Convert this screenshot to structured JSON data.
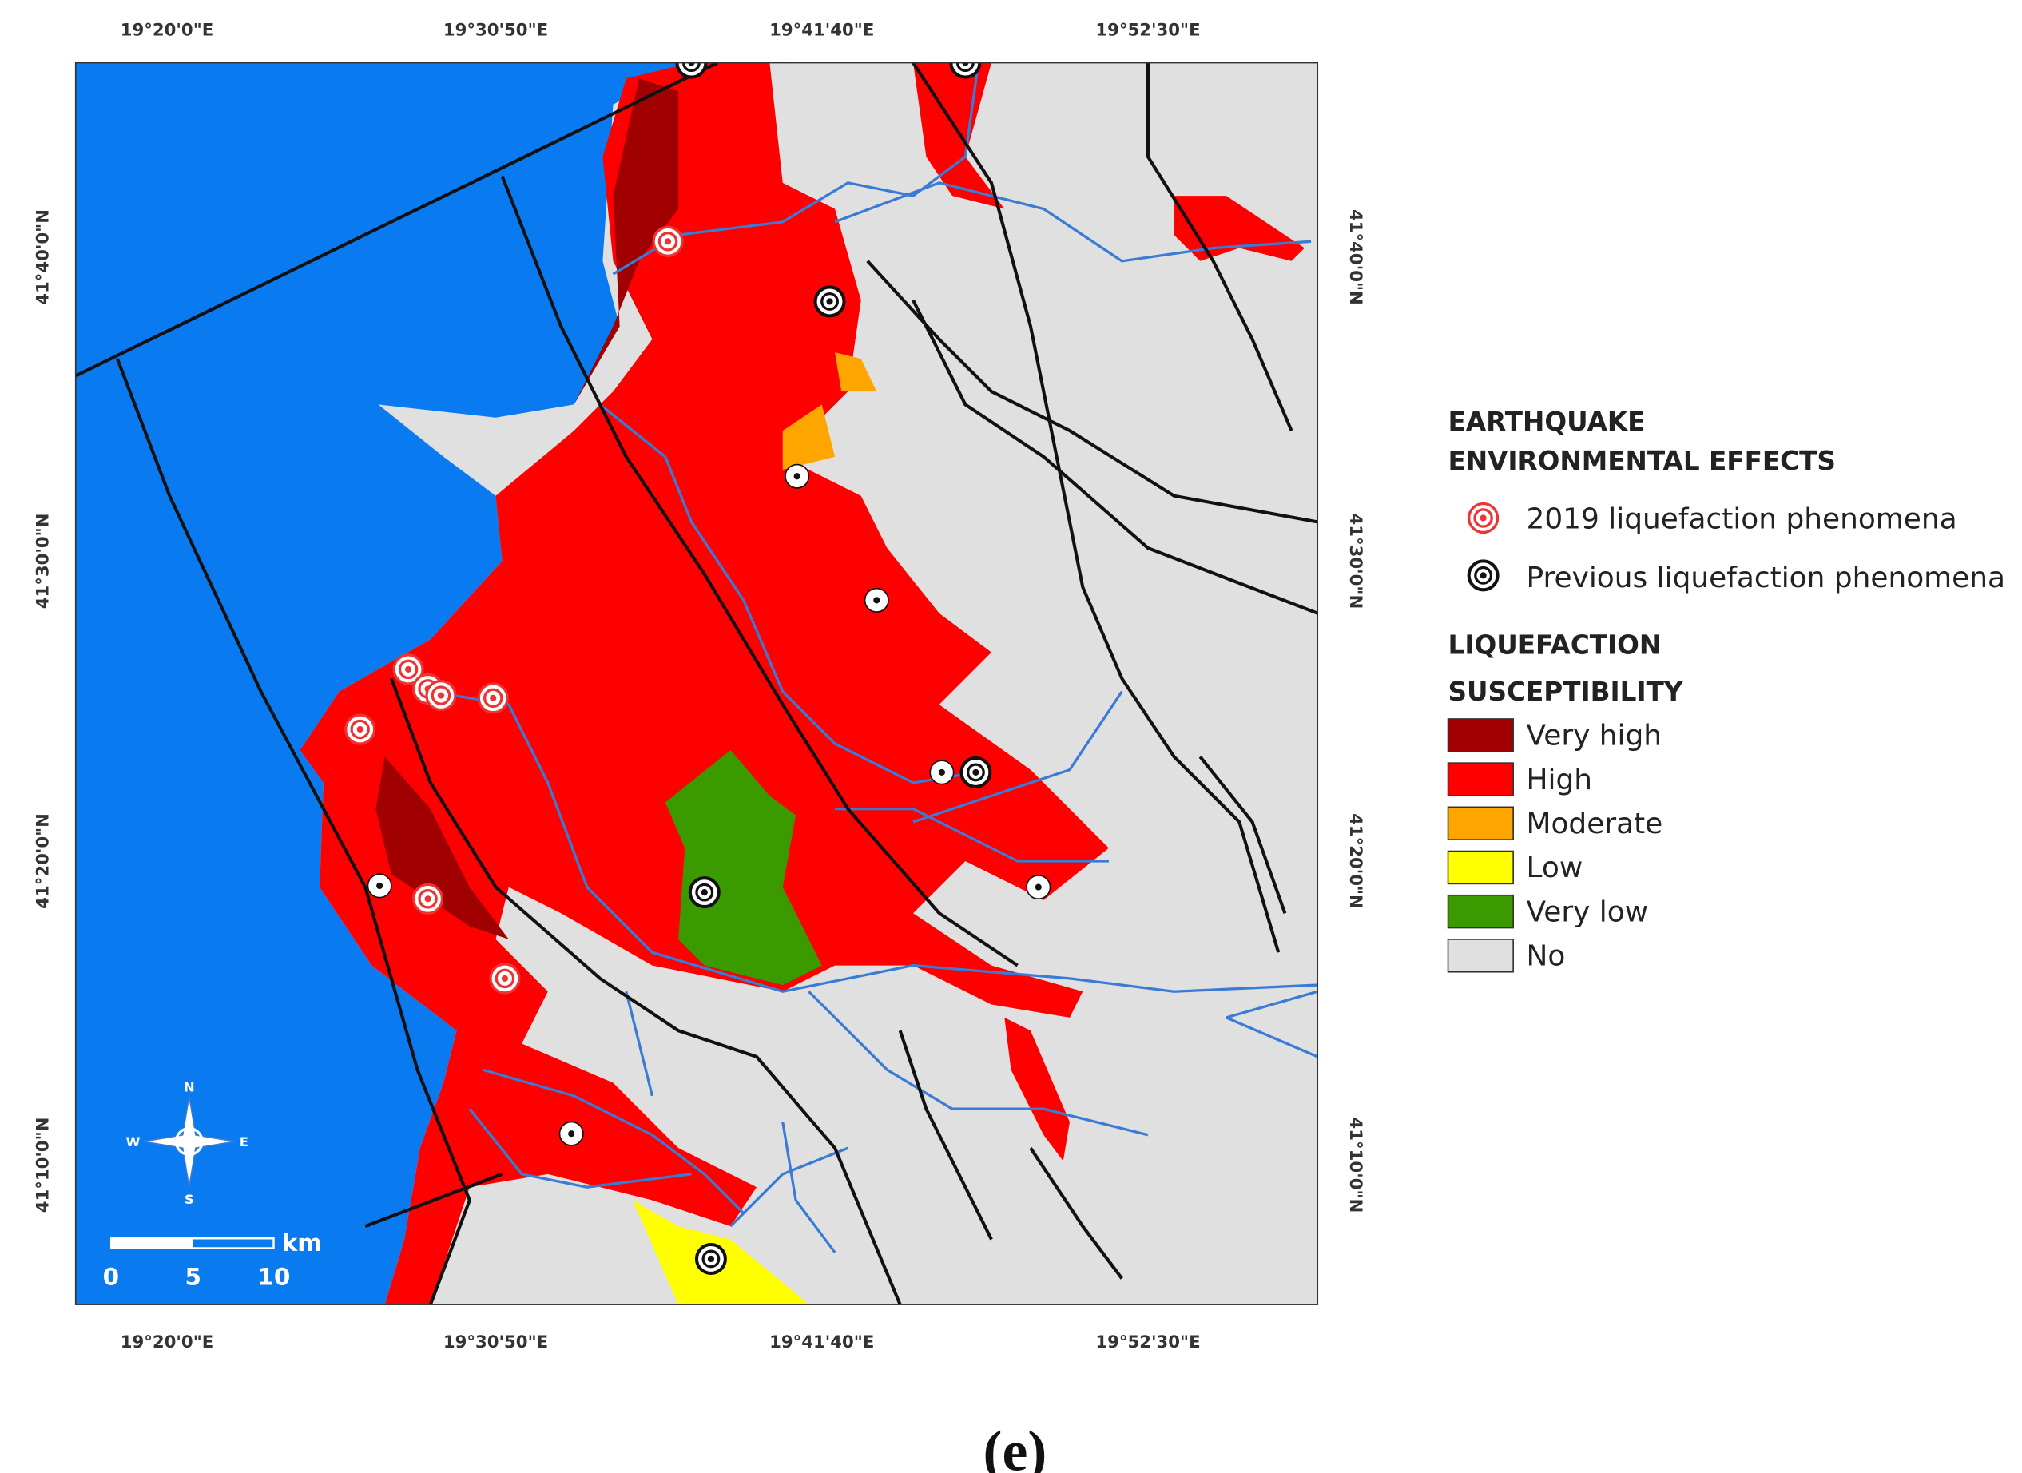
{
  "map": {
    "top_axis": [
      "19°20'0\"E",
      "19°30'50\"E",
      "19°41'40\"E",
      "19°52'30\"E"
    ],
    "bottom_axis": [
      "19°20'0\"E",
      "19°30'50\"E",
      "19°41'40\"E",
      "19°52'30\"E"
    ],
    "left_axis": [
      "41°40'0\"N",
      "41°30'0\"N",
      "41°20'0\"N",
      "41°10'0\"N"
    ],
    "right_axis": [
      "41°40'0\"N",
      "41°30'0\"N",
      "41°20'0\"N",
      "41°10'0\"N"
    ],
    "compass": {
      "n": "N",
      "s": "S",
      "e": "E",
      "w": "W"
    },
    "scale_bar": {
      "labels": [
        "0",
        "5",
        "10"
      ],
      "unit": "km"
    }
  },
  "legend": {
    "effects_title": [
      "EARTHQUAKE",
      "ENVIRONMENTAL EFFECTS"
    ],
    "effects": [
      "2019 liquefaction phenomena",
      "Previous liquefaction phenomena"
    ],
    "susceptibility_title": [
      "LIQUEFACTION",
      "SUSCEPTIBILITY"
    ],
    "classes": [
      {
        "label": "Very high",
        "color": "#a00000"
      },
      {
        "label": "High",
        "color": "#ff0000"
      },
      {
        "label": "Moderate",
        "color": "#ffa500"
      },
      {
        "label": "Low",
        "color": "#ffff00"
      },
      {
        "label": "Very low",
        "color": "#3a9a00"
      },
      {
        "label": "No",
        "color": "#e0e0e0"
      }
    ]
  },
  "caption": "(e)"
}
